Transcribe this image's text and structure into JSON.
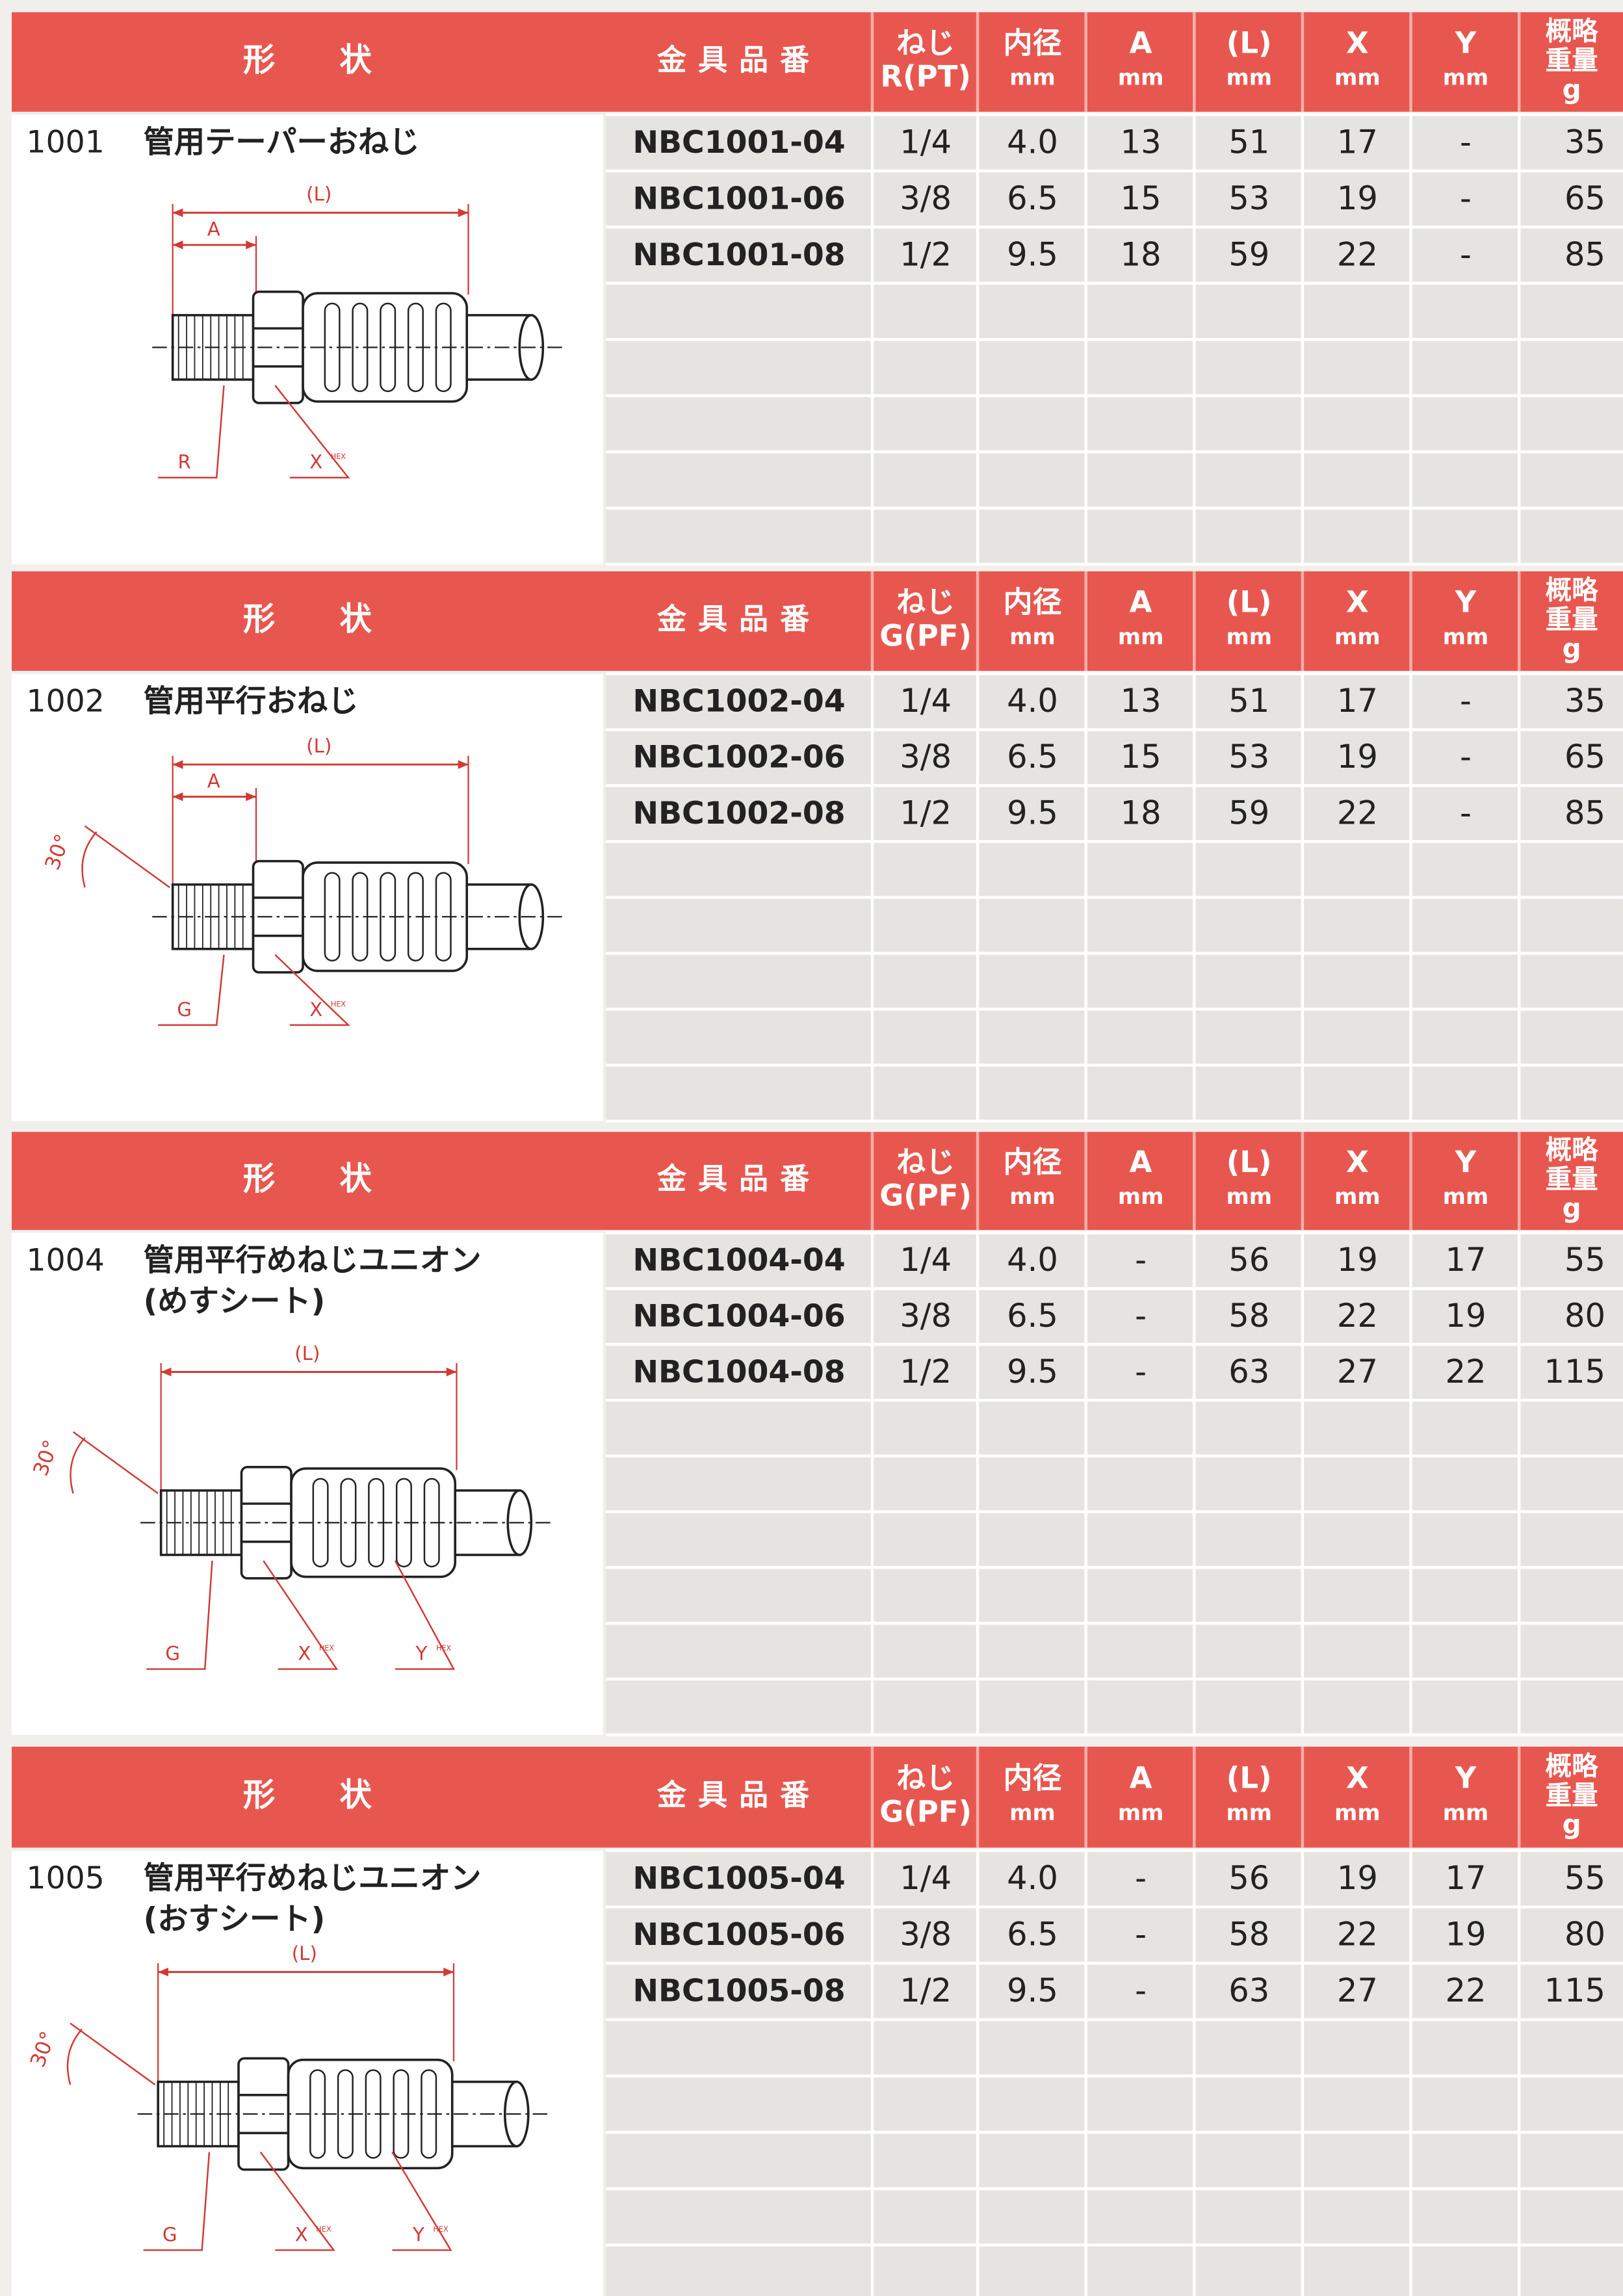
{
  "sections": [
    {
      "shape_header": "形　　状",
      "columns": [
        [
          "金具品番"
        ],
        [
          "ねじ",
          "R(PT)"
        ],
        [
          "内径",
          "mm"
        ],
        [
          "A",
          "mm"
        ],
        [
          "(L)",
          "mm"
        ],
        [
          "X",
          "mm"
        ],
        [
          "Y",
          "mm"
        ],
        [
          "概略",
          "重量",
          "g"
        ]
      ],
      "code": "1001",
      "name": [
        "管用テーパーおねじ"
      ],
      "diagram": {
        "L": "(L)",
        "A": "A",
        "left": "R",
        "X": "X",
        "hex": "HEX"
      },
      "rows": [
        [
          "NBC1001-04",
          "1/4",
          "4.0",
          "13",
          "51",
          "17",
          "-",
          "35"
        ],
        [
          "NBC1001-06",
          "3/8",
          "6.5",
          "15",
          "53",
          "19",
          "-",
          "65"
        ],
        [
          "NBC1001-08",
          "1/2",
          "9.5",
          "18",
          "59",
          "22",
          "-",
          "85"
        ]
      ]
    },
    {
      "shape_header": "形　　状",
      "columns": [
        [
          "金具品番"
        ],
        [
          "ねじ",
          "G(PF)"
        ],
        [
          "内径",
          "mm"
        ],
        [
          "A",
          "mm"
        ],
        [
          "(L)",
          "mm"
        ],
        [
          "X",
          "mm"
        ],
        [
          "Y",
          "mm"
        ],
        [
          "概略",
          "重量",
          "g"
        ]
      ],
      "code": "1002",
      "name": [
        "管用平行おねじ"
      ],
      "diagram": {
        "L": "(L)",
        "A": "A",
        "angle": "30°",
        "left": "G",
        "X": "X",
        "hex": "HEX"
      },
      "rows": [
        [
          "NBC1002-04",
          "1/4",
          "4.0",
          "13",
          "51",
          "17",
          "-",
          "35"
        ],
        [
          "NBC1002-06",
          "3/8",
          "6.5",
          "15",
          "53",
          "19",
          "-",
          "65"
        ],
        [
          "NBC1002-08",
          "1/2",
          "9.5",
          "18",
          "59",
          "22",
          "-",
          "85"
        ]
      ]
    },
    {
      "shape_header": "形　　状",
      "columns": [
        [
          "金具品番"
        ],
        [
          "ねじ",
          "G(PF)"
        ],
        [
          "内径",
          "mm"
        ],
        [
          "A",
          "mm"
        ],
        [
          "(L)",
          "mm"
        ],
        [
          "X",
          "mm"
        ],
        [
          "Y",
          "mm"
        ],
        [
          "概略",
          "重量",
          "g"
        ]
      ],
      "code": "1004",
      "name": [
        "管用平行めねじユニオン",
        "(めすシート)"
      ],
      "diagram": {
        "L": "(L)",
        "angle": "30°",
        "left": "G",
        "X": "X",
        "Y": "Y",
        "hex": "HEX"
      },
      "rows": [
        [
          "NBC1004-04",
          "1/4",
          "4.0",
          "-",
          "56",
          "19",
          "17",
          "55"
        ],
        [
          "NBC1004-06",
          "3/8",
          "6.5",
          "-",
          "58",
          "22",
          "19",
          "80"
        ],
        [
          "NBC1004-08",
          "1/2",
          "9.5",
          "-",
          "63",
          "27",
          "22",
          "115"
        ]
      ]
    },
    {
      "shape_header": "形　　状",
      "columns": [
        [
          "金具品番"
        ],
        [
          "ねじ",
          "G(PF)"
        ],
        [
          "内径",
          "mm"
        ],
        [
          "A",
          "mm"
        ],
        [
          "(L)",
          "mm"
        ],
        [
          "X",
          "mm"
        ],
        [
          "Y",
          "mm"
        ],
        [
          "概略",
          "重量",
          "g"
        ]
      ],
      "code": "1005",
      "name": [
        "管用平行めねじユニオン",
        "(おすシート)"
      ],
      "diagram": {
        "L": "(L)",
        "angle": "30°",
        "left": "G",
        "X": "X",
        "Y": "Y",
        "hex": "HEX"
      },
      "rows": [
        [
          "NBC1005-04",
          "1/4",
          "4.0",
          "-",
          "56",
          "19",
          "17",
          "55"
        ],
        [
          "NBC1005-06",
          "3/8",
          "6.5",
          "-",
          "58",
          "22",
          "19",
          "80"
        ],
        [
          "NBC1005-08",
          "1/2",
          "9.5",
          "-",
          "63",
          "27",
          "22",
          "115"
        ]
      ]
    }
  ]
}
